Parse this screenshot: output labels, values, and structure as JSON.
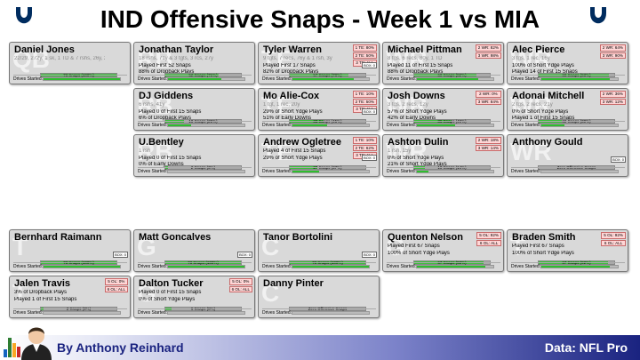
{
  "title": "IND Offensive Snaps - Week 1 vs MIA",
  "colors": {
    "snap_fill": "#3bbf3b",
    "badge_bg": "#ffd6d6",
    "footer_dark": "#1a2380"
  },
  "footer": {
    "author": "By Anthony Reinhard",
    "source": "Data: NFL Pro"
  },
  "drives_label": "Drives Started:",
  "players": [
    {
      "id": "jones",
      "pos": "QB",
      "name": "Daniel Jones",
      "stat": "22/29, 272y, 1 sk, 1 TD & 7 rshs, 26y, 2 TDs",
      "lines": [],
      "snap_label": "73 Snaps (100%)",
      "snap_pct": 1.0,
      "drive_pct": 1.0,
      "badges": [],
      "mini": ""
    },
    {
      "id": "taylor",
      "pos": "RB",
      "name": "Jonathan Taylor",
      "stat": "18 rshs, 71y & 3 tgts, 3 rcs, 27y",
      "lines": [
        "Played First 52 Snaps",
        "88% of Dropback Plays"
      ],
      "snap_label": "52 Snaps (71%)",
      "snap_pct": 0.71,
      "drive_pct": 0.7,
      "badges": [],
      "mini": ""
    },
    {
      "id": "giddens",
      "pos": "RB",
      "name": "DJ Giddens",
      "stat": "6 rshs, 41y",
      "lines": [
        "Played 0 of First 15 Snaps",
        "6% of Dropback Plays"
      ],
      "snap_label": "18 Snaps (25%)",
      "snap_pct": 0.25,
      "drive_pct": 0.3,
      "badges": [],
      "mini": ""
    },
    {
      "id": "bentley",
      "pos": "RB",
      "name": "U.Bentley",
      "stat": "1 rsh",
      "lines": [
        "Played 0 of First 15 Snaps",
        "0% of Early Downs"
      ],
      "snap_label": "2 Snaps (3%)",
      "snap_pct": 0.03,
      "drive_pct": 0.0,
      "badges": [],
      "mini": ""
    },
    {
      "id": "warren",
      "pos": "TE",
      "name": "Tyler Warren",
      "stat": "9 tgts, 7 recs, 76y & 1 rsh, 3y",
      "lines": [
        "Played First 17 Snaps",
        "82% of Dropback Plays"
      ],
      "snap_label": "57 Snaps (78%)",
      "snap_pct": 0.78,
      "drive_pct": 0.8,
      "badges": [
        "1 TE: 80%",
        "2 TE: 50%",
        "3 TE: ALL"
      ],
      "mini": "BOX: 0"
    },
    {
      "id": "aliecox",
      "pos": "TE",
      "name": "Mo Alie-Cox",
      "stat": "1 tgt, 1 rec, 20y",
      "lines": [
        "29% of Short Ydge Plays",
        "51% of Early Downs"
      ],
      "snap_label": "33 Snaps (45%)",
      "snap_pct": 0.45,
      "drive_pct": 0.45,
      "badges": [
        "1 TE: 10%",
        "2 TE: 50%",
        "3 TE: ALL"
      ],
      "mini": "BOX: 0"
    },
    {
      "id": "ogletree",
      "pos": "TE",
      "name": "Andrew Ogletree",
      "stat": "",
      "lines": [
        "Played 4 of First 15 Snaps",
        "29% of Short Ydge Plays"
      ],
      "snap_label": "27 Snaps (37%)",
      "snap_pct": 0.37,
      "drive_pct": 0.35,
      "badges": [
        "1 TE: 10%",
        "2 TE: 62%",
        "3 TE: ALL"
      ],
      "mini": "BOX: 0"
    },
    {
      "id": "pittman",
      "pos": "WR",
      "name": "Michael Pittman",
      "stat": "8 tgs, 6 recs, 80y, 1 TD",
      "lines": [
        "Played 11 of First 15 Snaps",
        "88% of Dropback Plays"
      ],
      "snap_label": "60 Snaps (82%)",
      "snap_pct": 0.82,
      "drive_pct": 0.8,
      "badges": [
        "2 WR: 82%",
        "3 WR: 98%"
      ],
      "mini": ""
    },
    {
      "id": "downs",
      "pos": "WR",
      "name": "Josh Downs",
      "stat": "3 tgs, 2 recs, 12y",
      "lines": [
        "57% of Short Ydge Plays",
        "42% of Early Downs"
      ],
      "snap_label": "36 Snaps (49%)",
      "snap_pct": 0.49,
      "drive_pct": 0.5,
      "badges": [
        "2 WR: 0%",
        "3 WR: 84%"
      ],
      "mini": ""
    },
    {
      "id": "dulin",
      "pos": "WR",
      "name": "Ashton Dulin",
      "stat": "1 rsh, 15y",
      "lines": [
        "0% of Short Ydge Plays",
        "21% of Short Ydge Plays"
      ],
      "snap_label": "10 Snaps (14%)",
      "snap_pct": 0.14,
      "drive_pct": 0.15,
      "badges": [
        "2 WR: 18%",
        "3 WR: 14%"
      ],
      "mini": ""
    },
    {
      "id": "pierce",
      "pos": "WR",
      "name": "Alec Pierce",
      "stat": "3 tgs, 1 rec, 16y",
      "lines": [
        "100% of Short Ydge Plays",
        "Played 14 of First 15 Snaps"
      ],
      "snap_label": "68 Snaps (93%)",
      "snap_pct": 0.93,
      "drive_pct": 0.9,
      "badges": [
        "2 WR: 64%",
        "3 WR: 90%"
      ],
      "mini": ""
    },
    {
      "id": "mitchell",
      "pos": "WR",
      "name": "Adonai Mitchell",
      "stat": "2 tgs, 2 recs, 21y",
      "lines": [
        "0% of Short Ydge Plays",
        "Played 1 of First 15 Snaps"
      ],
      "snap_label": "22 Snaps (30%)",
      "snap_pct": 0.3,
      "drive_pct": 0.3,
      "badges": [
        "2 WR: 36%",
        "3 WR: 12%"
      ],
      "mini": ""
    },
    {
      "id": "gould",
      "pos": "WR",
      "name": "Anthony Gould",
      "stat": "",
      "lines": [],
      "snap_label": "Zero Offensive Snaps",
      "snap_pct": 0.0,
      "drive_pct": 0.0,
      "badges": [],
      "mini": "BOX: 0"
    },
    {
      "id": "raimann",
      "pos": "T",
      "name": "Bernhard Raimann",
      "stat": "",
      "lines": [],
      "snap_label": "73 Snaps (100%)",
      "snap_pct": 1.0,
      "drive_pct": 1.0,
      "badges": [],
      "mini": "BOX: 0"
    },
    {
      "id": "travis",
      "pos": "T",
      "name": "Jalen Travis",
      "stat": "",
      "lines": [
        "3% of Dropback Plays",
        "Played 1 of First 15 Snaps"
      ],
      "snap_label": "2 Snaps (3%)",
      "snap_pct": 0.03,
      "drive_pct": 0.0,
      "badges": [
        "5 OL: 0%",
        "6 OL: ALL"
      ],
      "mini": ""
    },
    {
      "id": "goncalves",
      "pos": "G",
      "name": "Matt Goncalves",
      "stat": "",
      "lines": [],
      "snap_label": "73 Snaps (100%)",
      "snap_pct": 1.0,
      "drive_pct": 1.0,
      "badges": [],
      "mini": "BOX: 0"
    },
    {
      "id": "tucker",
      "pos": "G",
      "name": "Dalton Tucker",
      "stat": "",
      "lines": [
        "Played 0 of First 15 Snaps",
        "0% of Short Ydge Plays"
      ],
      "snap_label": "6 Snaps (8%)",
      "snap_pct": 0.08,
      "drive_pct": 0.0,
      "badges": [
        "5 OL: 0%",
        "6 OL: ALL"
      ],
      "mini": ""
    },
    {
      "id": "bortolini",
      "pos": "C",
      "name": "Tanor Bortolini",
      "stat": "",
      "lines": [],
      "snap_label": "73 Snaps (100%)",
      "snap_pct": 1.0,
      "drive_pct": 1.0,
      "badges": [],
      "mini": "BOX: 0"
    },
    {
      "id": "pinter",
      "pos": "C",
      "name": "Danny Pinter",
      "stat": "",
      "lines": [],
      "snap_label": "Zero Offensive Snaps",
      "snap_pct": 0.0,
      "drive_pct": 0.0,
      "badges": [],
      "mini": ""
    },
    {
      "id": "nelson",
      "pos": "G",
      "name": "Quenton Nelson",
      "stat": "",
      "lines": [
        "Played First 67 Snaps",
        "100% of Short Ydge Plays"
      ],
      "snap_label": "67 Snaps (92%)",
      "snap_pct": 0.92,
      "drive_pct": 0.9,
      "badges": [
        "5 OL: 92%",
        "6 OL: ALL"
      ],
      "mini": ""
    },
    {
      "id": "smith",
      "pos": "T",
      "name": "Braden Smith",
      "stat": "",
      "lines": [
        "Played First 67 Snaps",
        "100% of Short Ydge Plays"
      ],
      "snap_label": "67 Snaps (92%)",
      "snap_pct": 0.92,
      "drive_pct": 0.9,
      "badges": [
        "5 OL: 92%",
        "6 OL: ALL"
      ],
      "mini": ""
    }
  ]
}
